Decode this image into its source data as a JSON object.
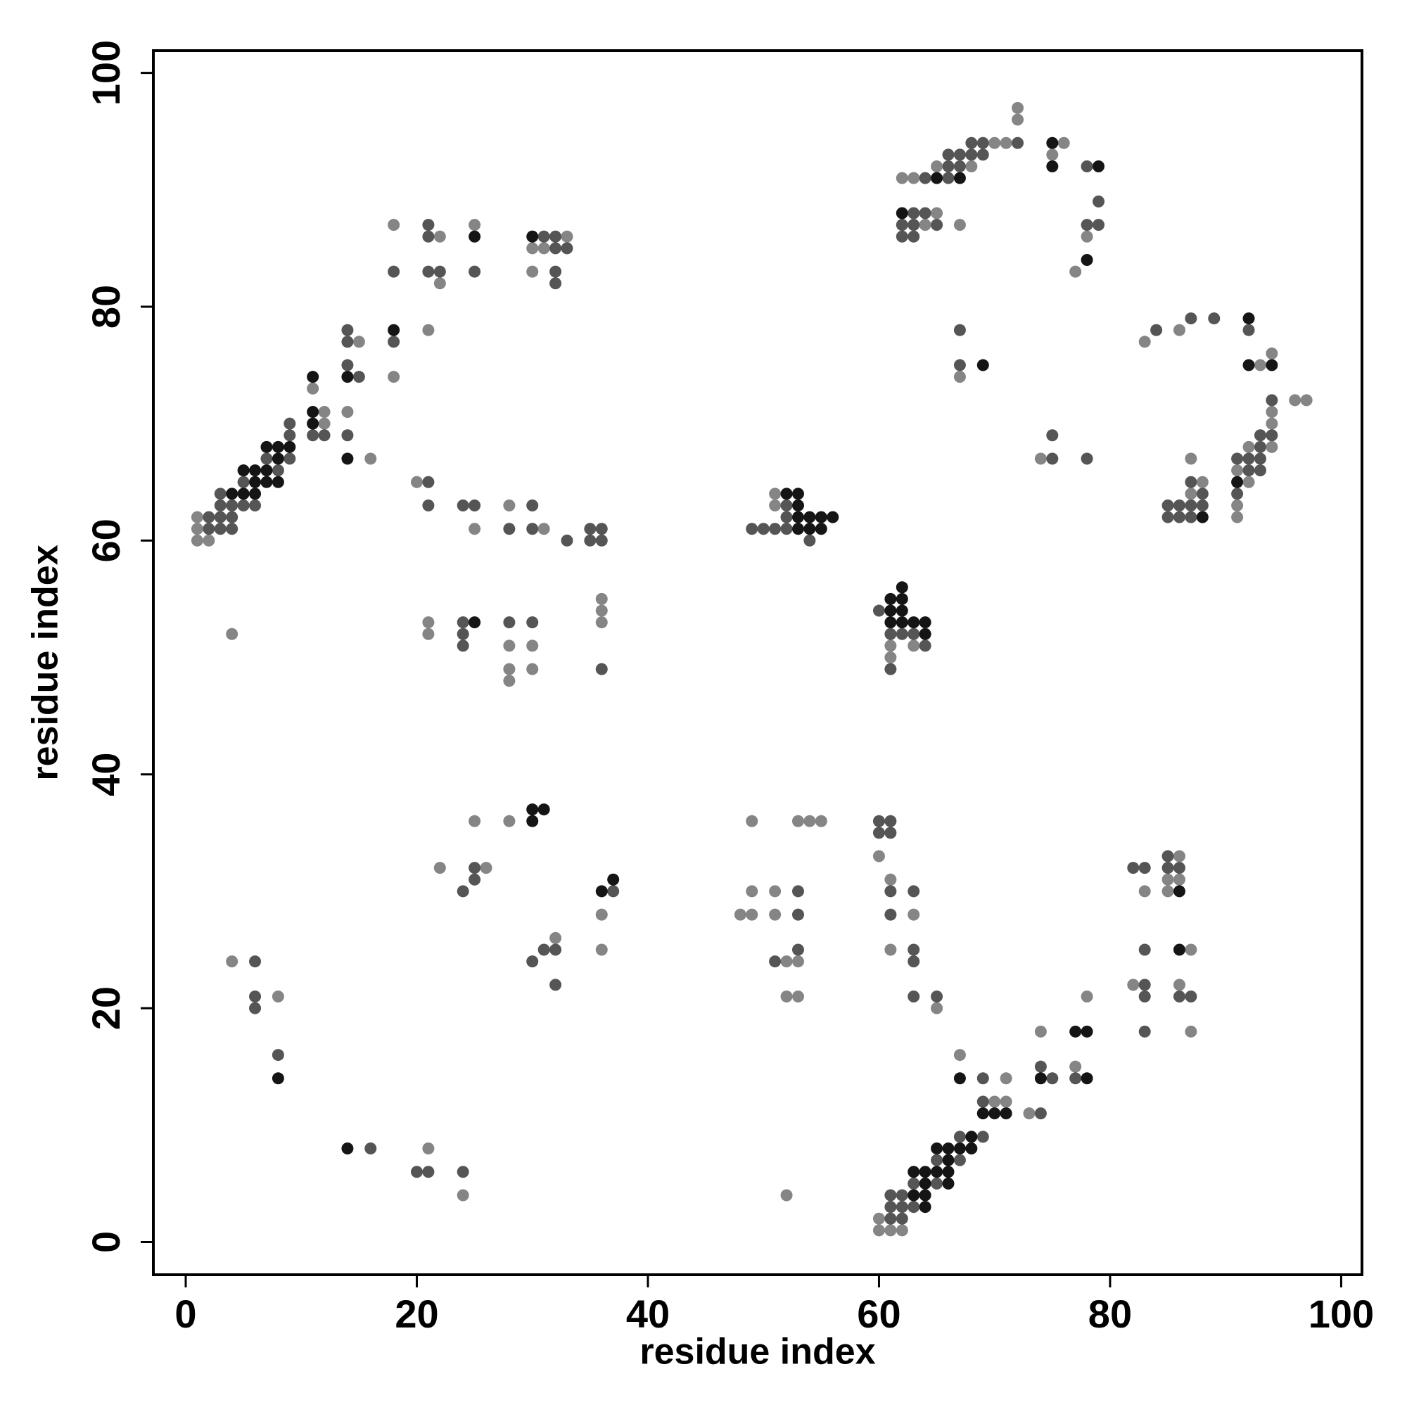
{
  "chart_data": {
    "type": "scatter",
    "xlabel": "residue index",
    "ylabel": "residue index",
    "xlim": [
      -2.8,
      101.8
    ],
    "ylim": [
      -2.8,
      101.9
    ],
    "xticks": [
      0,
      20,
      40,
      60,
      80,
      100
    ],
    "yticks": [
      0,
      20,
      40,
      60,
      80,
      100
    ],
    "series": [
      {
        "color": "#858585",
        "x": [
          1,
          1,
          1,
          2,
          4,
          4,
          8,
          11,
          12,
          12,
          14,
          15,
          16,
          18,
          18,
          20,
          21,
          21,
          21,
          21,
          22,
          22,
          22,
          24,
          25,
          25,
          25,
          26,
          28,
          28,
          28,
          28,
          28,
          30,
          30,
          30,
          30,
          31,
          31,
          32,
          33,
          36,
          36,
          36,
          36,
          36,
          48,
          49,
          49,
          49,
          51,
          51,
          51,
          51,
          52,
          52,
          52,
          53,
          53,
          53,
          54,
          55,
          60,
          60,
          60,
          61,
          61,
          61,
          61,
          61,
          62,
          62,
          63,
          63,
          63,
          64,
          65,
          65,
          65,
          67,
          67,
          67,
          68,
          70,
          70,
          71,
          71,
          71,
          72,
          72,
          73,
          74,
          74,
          75,
          76,
          77,
          77,
          78,
          78,
          82,
          83,
          83,
          85,
          85,
          86,
          86,
          86,
          86,
          87,
          87,
          87,
          87,
          88,
          91,
          91,
          91,
          92,
          92,
          93,
          94,
          94,
          94,
          94,
          96,
          97
        ],
        "y": [
          62,
          61,
          60,
          60,
          52,
          24,
          21,
          73,
          71,
          70,
          71,
          77,
          67,
          87,
          74,
          65,
          78,
          53,
          52,
          8,
          86,
          82,
          32,
          4,
          87,
          61,
          36,
          32,
          63,
          51,
          49,
          48,
          36,
          85,
          83,
          51,
          49,
          85,
          61,
          26,
          86,
          55,
          54,
          53,
          28,
          25,
          28,
          36,
          30,
          28,
          64,
          63,
          30,
          28,
          24,
          21,
          4,
          36,
          24,
          21,
          36,
          36,
          33,
          2,
          1,
          51,
          50,
          31,
          25,
          1,
          91,
          1,
          91,
          51,
          28,
          87,
          92,
          88,
          20,
          87,
          74,
          16,
          92,
          94,
          12,
          94,
          14,
          12,
          97,
          96,
          11,
          67,
          18,
          93,
          94,
          83,
          15,
          86,
          21,
          22,
          77,
          30,
          31,
          30,
          78,
          33,
          31,
          22,
          67,
          64,
          25,
          18,
          65,
          66,
          63,
          62,
          68,
          65,
          75,
          76,
          71,
          70,
          68,
          72,
          72
        ]
      },
      {
        "color": "#555555",
        "x": [
          2,
          2,
          3,
          3,
          3,
          3,
          4,
          4,
          4,
          5,
          5,
          6,
          6,
          6,
          6,
          7,
          8,
          8,
          9,
          9,
          9,
          11,
          12,
          14,
          14,
          14,
          14,
          15,
          16,
          18,
          18,
          20,
          21,
          21,
          21,
          21,
          21,
          21,
          22,
          24,
          24,
          24,
          24,
          24,
          24,
          25,
          25,
          25,
          25,
          28,
          28,
          30,
          30,
          30,
          30,
          31,
          31,
          32,
          32,
          32,
          32,
          32,
          32,
          33,
          33,
          35,
          35,
          36,
          36,
          36,
          37,
          49,
          50,
          51,
          51,
          52,
          52,
          52,
          53,
          53,
          53,
          54,
          60,
          60,
          60,
          61,
          61,
          61,
          61,
          61,
          61,
          61,
          61,
          61,
          62,
          62,
          62,
          62,
          62,
          62,
          63,
          63,
          63,
          63,
          63,
          63,
          63,
          63,
          63,
          63,
          64,
          64,
          64,
          65,
          65,
          65,
          65,
          66,
          66,
          66,
          67,
          67,
          67,
          67,
          67,
          67,
          68,
          68,
          69,
          69,
          69,
          69,
          69,
          72,
          74,
          74,
          75,
          75,
          75,
          77,
          78,
          78,
          78,
          79,
          79,
          82,
          83,
          83,
          83,
          83,
          83,
          84,
          85,
          85,
          85,
          85,
          86,
          86,
          86,
          86,
          87,
          87,
          87,
          87,
          87,
          88,
          88,
          89,
          91,
          91,
          92,
          92,
          92,
          93,
          93,
          93,
          93,
          94,
          94
        ],
        "y": [
          62,
          61,
          64,
          63,
          62,
          61,
          63,
          62,
          61,
          65,
          63,
          63,
          24,
          21,
          20,
          67,
          66,
          16,
          70,
          69,
          67,
          69,
          69,
          78,
          77,
          75,
          69,
          74,
          8,
          83,
          77,
          6,
          87,
          86,
          83,
          65,
          63,
          6,
          83,
          63,
          53,
          52,
          51,
          30,
          6,
          83,
          63,
          32,
          31,
          61,
          53,
          63,
          61,
          53,
          24,
          86,
          25,
          86,
          85,
          83,
          82,
          25,
          22,
          85,
          60,
          61,
          60,
          61,
          60,
          49,
          30,
          61,
          61,
          61,
          24,
          63,
          62,
          61,
          30,
          28,
          25,
          60,
          54,
          36,
          35,
          52,
          49,
          36,
          35,
          30,
          28,
          4,
          3,
          2,
          87,
          86,
          52,
          4,
          3,
          2,
          88,
          87,
          86,
          52,
          30,
          25,
          24,
          21,
          5,
          3,
          91,
          88,
          51,
          87,
          21,
          7,
          5,
          93,
          92,
          91,
          93,
          92,
          78,
          75,
          9,
          7,
          94,
          93,
          94,
          93,
          14,
          12,
          9,
          94,
          15,
          11,
          69,
          67,
          14,
          14,
          92,
          87,
          67,
          89,
          87,
          32,
          32,
          25,
          22,
          21,
          18,
          78,
          63,
          62,
          33,
          32,
          63,
          62,
          32,
          21,
          79,
          65,
          63,
          62,
          21,
          64,
          63,
          79,
          67,
          64,
          78,
          67,
          66,
          69,
          68,
          67,
          66,
          72,
          69
        ]
      },
      {
        "color": "#151515",
        "x": [
          4,
          5,
          5,
          6,
          6,
          6,
          7,
          7,
          7,
          8,
          8,
          8,
          8,
          9,
          11,
          11,
          11,
          14,
          14,
          14,
          18,
          25,
          25,
          30,
          30,
          30,
          31,
          36,
          37,
          52,
          53,
          53,
          53,
          53,
          54,
          54,
          55,
          55,
          56,
          61,
          61,
          61,
          62,
          62,
          62,
          62,
          62,
          63,
          63,
          63,
          64,
          64,
          64,
          64,
          64,
          64,
          65,
          65,
          65,
          66,
          66,
          66,
          66,
          67,
          67,
          67,
          68,
          68,
          69,
          69,
          70,
          71,
          74,
          75,
          75,
          77,
          78,
          78,
          78,
          79,
          86,
          86,
          88,
          91,
          92,
          92,
          94
        ],
        "y": [
          64,
          66,
          64,
          66,
          65,
          64,
          68,
          66,
          65,
          68,
          67,
          65,
          14,
          68,
          74,
          71,
          70,
          74,
          67,
          8,
          78,
          86,
          53,
          86,
          37,
          36,
          37,
          30,
          31,
          64,
          64,
          63,
          62,
          61,
          62,
          61,
          62,
          61,
          62,
          55,
          54,
          53,
          88,
          56,
          55,
          54,
          53,
          53,
          6,
          4,
          53,
          52,
          6,
          5,
          4,
          3,
          91,
          8,
          6,
          8,
          7,
          6,
          5,
          91,
          14,
          8,
          9,
          8,
          75,
          11,
          11,
          11,
          14,
          94,
          92,
          18,
          84,
          18,
          14,
          92,
          30,
          25,
          62,
          65,
          79,
          75,
          75
        ]
      }
    ]
  }
}
